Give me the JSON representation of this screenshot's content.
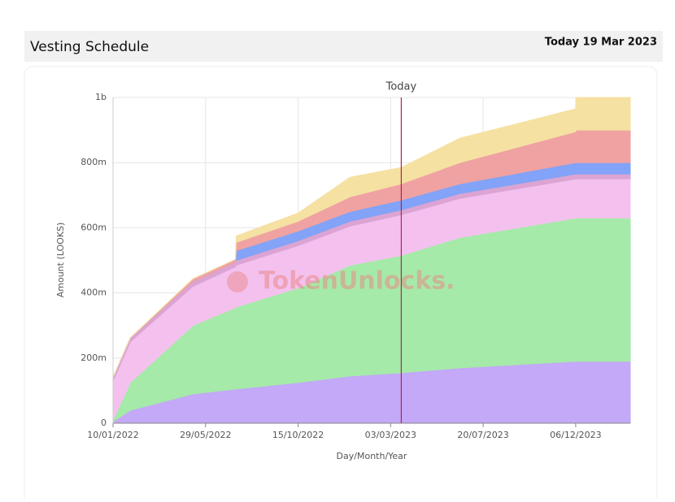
{
  "header": {
    "title": "Vesting Schedule",
    "today": "Today 19 Mar 2023"
  },
  "chart_data": {
    "type": "stacked_area",
    "xlabel": "Day/Month/Year",
    "ylabel": "Amount (LOOKS)",
    "watermark": "TokenUnlocks.",
    "marker": {
      "label": "Today",
      "x": "2023-03-19",
      "color": "#b0254f"
    },
    "x": [
      "2022-01-10",
      "2022-02-05",
      "2022-05-10",
      "2022-07-13",
      "2022-07-14",
      "2022-10-15",
      "2023-01-01",
      "2023-03-19",
      "2023-06-15",
      "2023-12-06",
      "2023-12-07",
      "2024-02-26"
    ],
    "series": [
      {
        "color": "#c3a9f7",
        "values": [
          5,
          40,
          90,
          105,
          105,
          125,
          145,
          155,
          170,
          190,
          190,
          190
        ]
      },
      {
        "color": "#a5eaa8",
        "values": [
          5,
          85,
          210,
          250,
          252,
          290,
          340,
          360,
          400,
          440,
          440,
          440
        ]
      },
      {
        "color": "#f4c1ef",
        "values": [
          120,
          125,
          120,
          125,
          128,
          130,
          120,
          125,
          120,
          120,
          120,
          120
        ]
      },
      {
        "color": "#dba4d3",
        "values": [
          10,
          12,
          15,
          15,
          15,
          15,
          15,
          15,
          15,
          15,
          15,
          15
        ]
      },
      {
        "color": "#82a3f7",
        "values": [
          0,
          0,
          0,
          0,
          30,
          30,
          30,
          30,
          30,
          35,
          35,
          35
        ]
      },
      {
        "color": "#f0a2a2",
        "values": [
          0,
          0,
          8,
          8,
          25,
          30,
          45,
          50,
          65,
          95,
          100,
          100
        ]
      },
      {
        "color": "#f5e1a2",
        "values": [
          0,
          0,
          0,
          0,
          20,
          25,
          60,
          50,
          75,
          70,
          100,
          100
        ]
      }
    ],
    "xlim": [
      "2022-01-10",
      "2024-02-26"
    ],
    "xticks": [
      {
        "value": "2022-01-10",
        "label": "10/01/2022"
      },
      {
        "value": "2022-05-29",
        "label": "29/05/2022"
      },
      {
        "value": "2022-10-15",
        "label": "15/10/2022"
      },
      {
        "value": "2023-03-03",
        "label": "03/03/2023"
      },
      {
        "value": "2023-07-20",
        "label": "20/07/2023"
      },
      {
        "value": "2023-12-06",
        "label": "06/12/2023"
      }
    ],
    "ylim": [
      0,
      1000
    ],
    "yticks": [
      0,
      {
        "value": 200,
        "label": "200m"
      },
      {
        "value": 400,
        "label": "400m"
      },
      {
        "value": 600,
        "label": "600m"
      },
      {
        "value": 800,
        "label": "800m"
      },
      {
        "value": 1000,
        "label": "1b"
      }
    ],
    "grid": true
  }
}
